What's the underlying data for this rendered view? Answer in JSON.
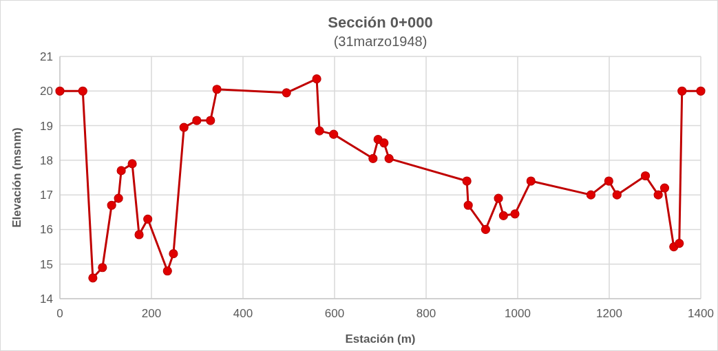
{
  "chart_data": {
    "type": "line",
    "title": "Sección 0+000",
    "subtitle": "(31marzo1948)",
    "xlabel": "Estación (m)",
    "ylabel": "Elevación (msnm)",
    "xlim": [
      0,
      1400
    ],
    "xticks": [
      0,
      200,
      400,
      600,
      800,
      1000,
      1200,
      1400
    ],
    "ylim": [
      14,
      21
    ],
    "yticks": [
      14,
      15,
      16,
      17,
      18,
      19,
      20,
      21
    ],
    "grid": true,
    "marker": "circle",
    "line_style": "solid",
    "series": [
      {
        "color": "#c00000",
        "x": [
          0,
          50,
          72,
          93,
          113,
          128,
          134,
          158,
          173,
          192,
          235,
          248,
          271,
          299,
          329,
          343,
          495,
          561,
          567,
          598,
          684,
          695,
          708,
          719,
          889,
          892,
          930,
          958,
          969,
          994,
          1029,
          1160,
          1199,
          1217,
          1279,
          1307,
          1321,
          1341,
          1353,
          1359,
          1400
        ],
        "values": [
          20.0,
          20.0,
          14.6,
          14.9,
          16.7,
          16.9,
          17.7,
          17.9,
          15.85,
          16.3,
          14.8,
          15.3,
          18.95,
          19.15,
          19.15,
          20.05,
          19.95,
          20.35,
          18.85,
          18.75,
          18.05,
          18.6,
          18.5,
          18.05,
          17.4,
          16.7,
          16.0,
          16.9,
          16.4,
          16.45,
          17.4,
          17.0,
          17.4,
          17.0,
          17.55,
          17.0,
          17.2,
          15.5,
          15.6,
          20.0,
          20.0
        ]
      }
    ]
  }
}
